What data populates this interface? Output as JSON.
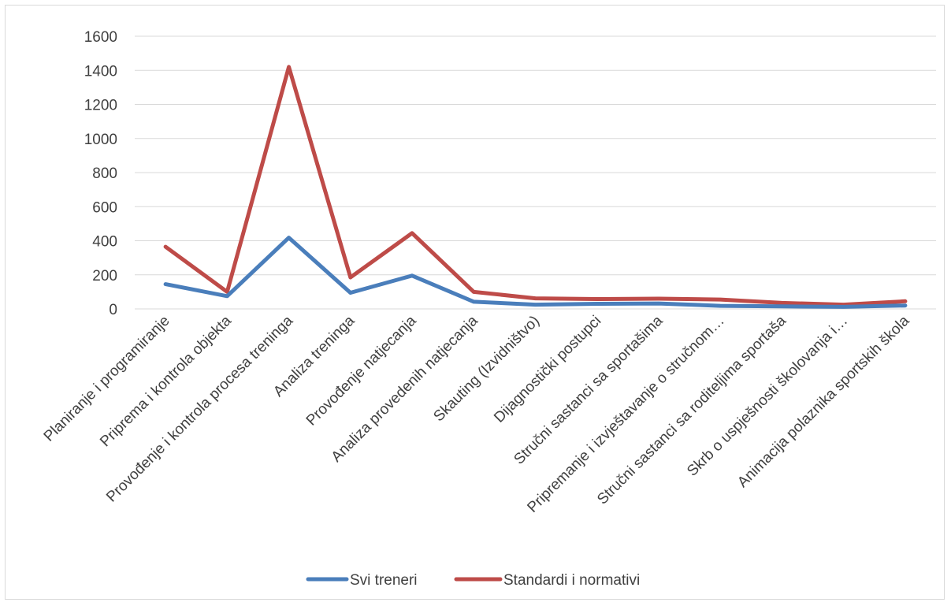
{
  "chart_data": {
    "type": "line",
    "title": "",
    "xlabel": "",
    "ylabel": "",
    "ylim": [
      0,
      1600
    ],
    "yticks": [
      0,
      200,
      400,
      600,
      800,
      1000,
      1200,
      1400,
      1600
    ],
    "grid": true,
    "legend_position": "bottom",
    "categories": [
      "Planiranje i programiranje",
      "Priprema i kontrola objekta",
      "Provođenje i kontrola procesa treninga",
      "Analiza treninga",
      "Provođenje natjecanja",
      "Analiza provedenih natjecanja",
      "Skauting (Izvidništvo)",
      "Dijagnostički postupci",
      "Stručni sastanci sa sportašima",
      "Pripremanje i izvještavanje o stručnom…",
      "Stručni sastanci sa roditeljima sportaša",
      "Skrb o uspješnosti  školovanja i…",
      "Animacija polaznika sportskih škola"
    ],
    "series": [
      {
        "name": "Svi treneri",
        "color": "#4a7ebb",
        "values": [
          145,
          75,
          418,
          95,
          195,
          42,
          25,
          30,
          32,
          18,
          15,
          12,
          20
        ]
      },
      {
        "name": "Standardi i normativi",
        "color": "#be4b48",
        "values": [
          365,
          100,
          1420,
          185,
          445,
          100,
          62,
          58,
          60,
          55,
          35,
          25,
          45
        ]
      }
    ]
  }
}
